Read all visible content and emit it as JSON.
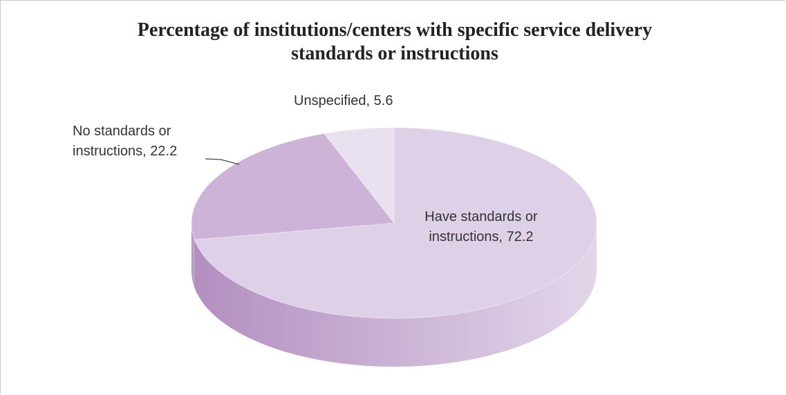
{
  "chart_data": {
    "type": "pie3d",
    "title": "Percentage of institutions/centers with specific service delivery standards or instructions",
    "categories": [
      "Have standards or instructions",
      "No standards or instructions",
      "Unspecified"
    ],
    "values": [
      72.2,
      22.2,
      5.6
    ],
    "colors": [
      "#ddd0e7",
      "#cdb3d7",
      "#e9e1ef"
    ],
    "side_colors": [
      [
        "#e2d6ea",
        "#b38fc0"
      ],
      [
        "#c4a8cf",
        "#b497c0"
      ],
      [
        "#d8cce2",
        "#c9b8d4"
      ]
    ],
    "label_separator": ","
  }
}
